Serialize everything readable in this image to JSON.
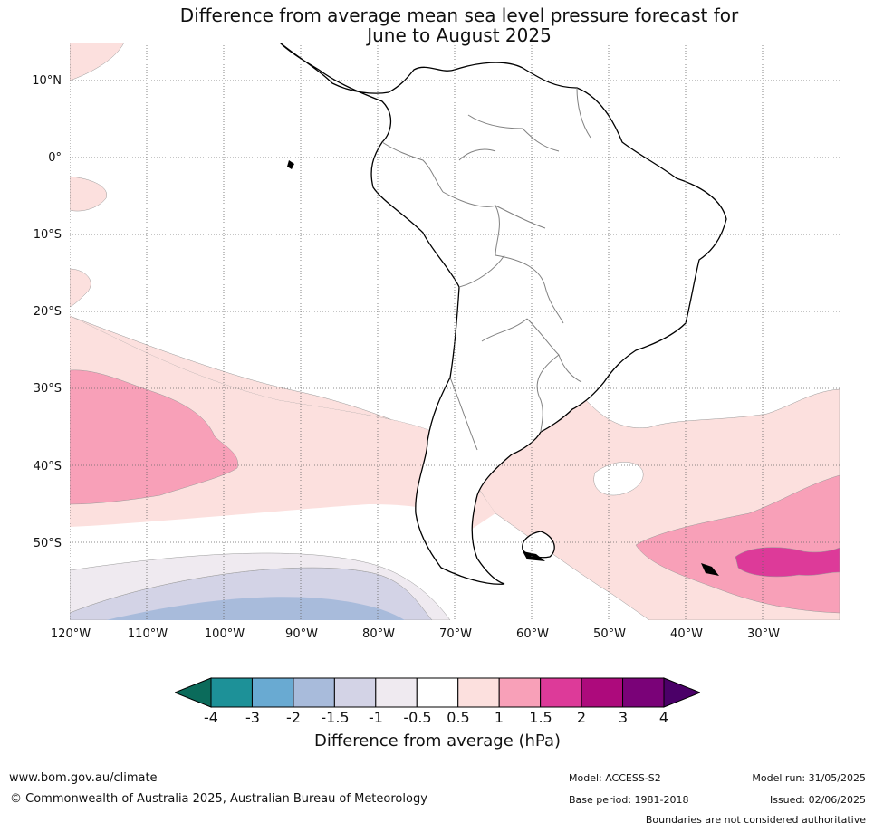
{
  "title_line1": "Difference from average mean sea level pressure forecast for",
  "title_line2": "June to August 2025",
  "lat_labels": [
    "10°N",
    "0°",
    "10°S",
    "20°S",
    "30°S",
    "40°S",
    "50°S"
  ],
  "lon_labels": [
    "120°W",
    "110°W",
    "100°W",
    "90°W",
    "80°W",
    "70°W",
    "60°W",
    "50°W",
    "40°W",
    "30°W"
  ],
  "colorbar": {
    "ticks": [
      "-4",
      "-3",
      "-2",
      "-1.5",
      "-1",
      "-0.5",
      "0.5",
      "1",
      "1.5",
      "2",
      "3",
      "4"
    ],
    "colors": [
      "#1d9198",
      "#69aad2",
      "#a8bbdb",
      "#d3d3e6",
      "#efeaf0",
      "#ffffff",
      "#fce0de",
      "#f8a0b8",
      "#dd3a99",
      "#ad0a7c",
      "#7a0278"
    ],
    "low_extend_color": "#0b6b5b",
    "high_extend_color": "#4b0068",
    "label": "Difference from average (hPa)"
  },
  "map_colors": {
    "gridline": "#666666",
    "coast": "#000000",
    "border": "#808080"
  },
  "footer": {
    "url": "www.bom.gov.au/climate",
    "copyright": "© Commonwealth of Australia 2025, Australian Bureau of Meteorology",
    "model": "Model: ACCESS-S2",
    "base_period": "Base period: 1981-2018",
    "model_run": "Model run: 31/05/2025",
    "issued": "Issued: 02/06/2025",
    "disclaimer": "Boundaries are not considered authoritative"
  }
}
